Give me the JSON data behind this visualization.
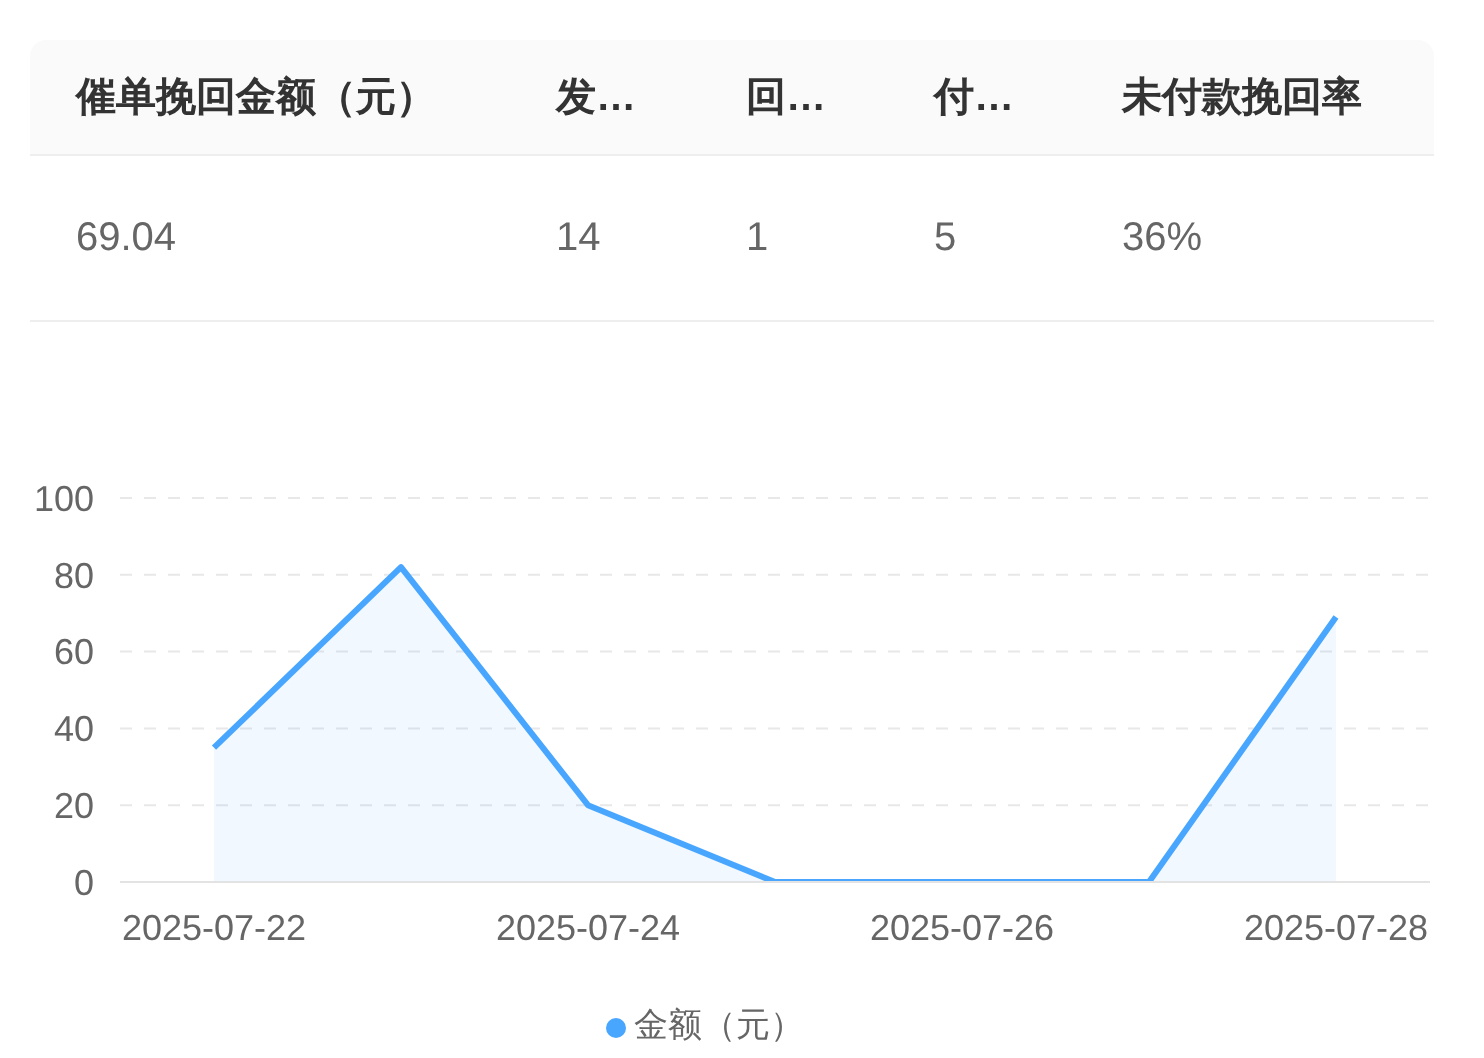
{
  "chart_data": [
    {
      "type": "other",
      "categories": [
        "催单挽回金额（元）",
        "发…",
        "回…",
        "付…",
        "未付款挽回率"
      ],
      "value_labels": [
        "69.04",
        "14",
        "1",
        "5",
        "36%"
      ]
    },
    {
      "type": "area",
      "categories": [
        "2025-07-22",
        null,
        "2025-07-24",
        null,
        "2025-07-26",
        null,
        "2025-07-28"
      ],
      "series": [
        {
          "name": "金额（元）",
          "color": "#48a6ff",
          "values": [
            35,
            82,
            20,
            0,
            0,
            0,
            69
          ]
        }
      ],
      "ylim": [
        0,
        100
      ],
      "yticks": [
        0,
        20,
        40,
        60,
        80,
        100
      ],
      "grid": "y",
      "legend": "bottom"
    }
  ]
}
